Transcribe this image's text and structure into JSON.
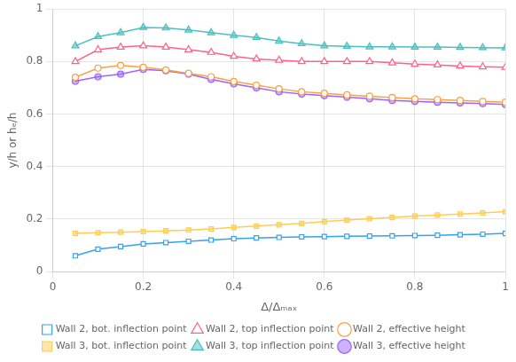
{
  "chart_data": {
    "type": "line",
    "x": [
      0.05,
      0.1,
      0.15,
      0.2,
      0.25,
      0.3,
      0.35,
      0.4,
      0.45,
      0.5,
      0.55,
      0.6,
      0.65,
      0.7,
      0.75,
      0.8,
      0.85,
      0.9,
      0.95,
      1.0
    ],
    "series": [
      {
        "name": "Wall 2, bot. inflection point",
        "marker": "square_open",
        "values": [
          0.06,
          0.085,
          0.095,
          0.105,
          0.11,
          0.115,
          0.12,
          0.125,
          0.128,
          0.13,
          0.132,
          0.133,
          0.134,
          0.135,
          0.136,
          0.137,
          0.138,
          0.14,
          0.142,
          0.145
        ]
      },
      {
        "name": "Wall 2, top inflection point",
        "marker": "triangle_open",
        "values": [
          0.8,
          0.845,
          0.855,
          0.86,
          0.855,
          0.845,
          0.835,
          0.82,
          0.81,
          0.805,
          0.8,
          0.8,
          0.8,
          0.8,
          0.795,
          0.79,
          0.787,
          0.783,
          0.78,
          0.778
        ]
      },
      {
        "name": "Wall 2, effective height",
        "marker": "circle_open",
        "values": [
          0.74,
          0.775,
          0.785,
          0.778,
          0.768,
          0.755,
          0.742,
          0.724,
          0.71,
          0.696,
          0.685,
          0.679,
          0.673,
          0.668,
          0.663,
          0.658,
          0.655,
          0.652,
          0.648,
          0.645
        ]
      },
      {
        "name": "Wall 3, bot. inflection point",
        "marker": "square",
        "values": [
          0.145,
          0.148,
          0.15,
          0.152,
          0.155,
          0.158,
          0.162,
          0.168,
          0.173,
          0.178,
          0.183,
          0.19,
          0.196,
          0.201,
          0.206,
          0.211,
          0.215,
          0.219,
          0.223,
          0.228
        ]
      },
      {
        "name": "Wall 3, top inflection point",
        "marker": "triangle",
        "values": [
          0.86,
          0.895,
          0.91,
          0.93,
          0.928,
          0.92,
          0.91,
          0.9,
          0.892,
          0.878,
          0.868,
          0.86,
          0.858,
          0.856,
          0.856,
          0.855,
          0.855,
          0.854,
          0.853,
          0.852
        ]
      },
      {
        "name": "Wall 3, effective height",
        "marker": "circle",
        "values": [
          0.725,
          0.742,
          0.752,
          0.77,
          0.765,
          0.752,
          0.732,
          0.715,
          0.7,
          0.685,
          0.676,
          0.67,
          0.664,
          0.658,
          0.652,
          0.648,
          0.645,
          0.642,
          0.64,
          0.636
        ]
      }
    ],
    "x_label": "Δ/Δₘₐₓ",
    "y_label": "y/h or hₑ/h",
    "xlim": [
      0,
      1
    ],
    "ylim": [
      0,
      1
    ],
    "xticks": [
      0,
      0.2,
      0.4,
      0.6,
      0.8,
      1
    ],
    "yticks": [
      0,
      0.2,
      0.4,
      0.6,
      0.8,
      1
    ],
    "grid": true,
    "legend": "bottom"
  }
}
